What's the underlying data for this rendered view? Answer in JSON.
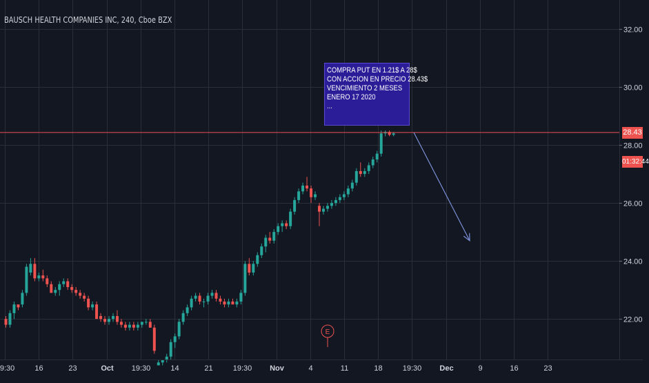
{
  "header": {
    "title": "BAUSCH HEALTH COMPANIES INC, 240, Cboe BZX"
  },
  "annotation": {
    "lines": [
      "COMPRA PUT EN 1.21$  A  28$",
      "CON ACCION EN PRECIO 28.43$",
      "VENCIMIENTO 2 MESES",
      "ENERO 17  2020",
      "..."
    ]
  },
  "price_scale": {
    "last_price": "28.43",
    "countdown": "01:32:44"
  },
  "colors": {
    "background": "#131722",
    "up": "#26a69a",
    "down": "#ef5350",
    "grid": "#2a2e39",
    "price_line": "#ef5350",
    "arrow": "#7b8fd6",
    "earnings_marker": "#ef5350",
    "axis_text": "#d1d4dc"
  },
  "chart_data": {
    "type": "candlestick",
    "title": "BAUSCH HEALTH COMPANIES INC, 240, Cboe BZX",
    "ylim": [
      20.6,
      33.0
    ],
    "y_ticks": [
      "32.00",
      "30.00",
      "28.00",
      "26.00",
      "24.00",
      "22.00"
    ],
    "y_tick_values": [
      32,
      30,
      28,
      26,
      24,
      22
    ],
    "x_ticks": [
      "19:30",
      "16",
      "23",
      "Oct",
      "19:30",
      "14",
      "21",
      "19:30",
      "Nov",
      "4",
      "11",
      "18",
      "19:30",
      "Dec",
      "9",
      "16",
      "23"
    ],
    "x_bold_ticks": [
      "Oct",
      "Nov",
      "Dec"
    ],
    "grid": true,
    "last_price": 28.43,
    "earnings_marker": "E",
    "annotation_arrow": {
      "from": [
        28.43
      ],
      "to": [
        24.7
      ]
    },
    "candles": [
      [
        22.0,
        22.1,
        21.7,
        21.8
      ],
      [
        21.8,
        22.3,
        21.7,
        22.2
      ],
      [
        22.2,
        22.6,
        22.0,
        22.5
      ],
      [
        22.5,
        22.5,
        22.3,
        22.4
      ],
      [
        22.5,
        23.0,
        22.4,
        22.9
      ],
      [
        22.9,
        23.9,
        22.8,
        23.8
      ],
      [
        23.6,
        24.1,
        23.5,
        23.9
      ],
      [
        23.9,
        24.1,
        23.3,
        23.4
      ],
      [
        23.4,
        23.6,
        23.3,
        23.5
      ],
      [
        23.5,
        23.7,
        23.3,
        23.4
      ],
      [
        23.4,
        23.5,
        23.1,
        23.2
      ],
      [
        23.2,
        23.3,
        22.9,
        22.9
      ],
      [
        22.9,
        23.1,
        22.8,
        23.0
      ],
      [
        23.0,
        23.3,
        22.8,
        23.2
      ],
      [
        23.2,
        23.4,
        23.1,
        23.3
      ],
      [
        23.3,
        23.4,
        23.0,
        23.1
      ],
      [
        23.1,
        23.2,
        22.9,
        23.0
      ],
      [
        23.0,
        23.1,
        22.8,
        22.9
      ],
      [
        22.9,
        23.0,
        22.7,
        22.8
      ],
      [
        22.8,
        22.9,
        22.6,
        22.7
      ],
      [
        22.7,
        22.8,
        22.3,
        22.4
      ],
      [
        22.4,
        22.6,
        22.3,
        22.5
      ],
      [
        22.5,
        22.6,
        22.0,
        22.0
      ],
      [
        22.1,
        22.2,
        21.9,
        22.0
      ],
      [
        22.0,
        22.1,
        21.8,
        21.9
      ],
      [
        21.9,
        22.1,
        21.8,
        22.0
      ],
      [
        22.0,
        22.2,
        21.9,
        22.1
      ],
      [
        22.1,
        22.3,
        21.8,
        21.9
      ],
      [
        21.9,
        22.0,
        21.7,
        21.8
      ],
      [
        21.8,
        21.9,
        21.6,
        21.7
      ],
      [
        21.7,
        21.9,
        21.6,
        21.8
      ],
      [
        21.8,
        21.9,
        21.6,
        21.7
      ],
      [
        21.7,
        21.9,
        21.6,
        21.8
      ],
      [
        21.8,
        21.9,
        21.7,
        21.9
      ],
      [
        21.9,
        22.0,
        21.8,
        21.9
      ],
      [
        21.9,
        22.0,
        21.7,
        21.7
      ],
      [
        21.7,
        21.8,
        20.8,
        20.9
      ],
      [
        20.4,
        20.6,
        20.4,
        20.5
      ],
      [
        20.5,
        20.6,
        20.4,
        20.6
      ],
      [
        20.6,
        20.8,
        20.5,
        20.7
      ],
      [
        20.7,
        21.3,
        20.6,
        21.2
      ],
      [
        21.2,
        21.5,
        21.0,
        21.4
      ],
      [
        21.4,
        22.0,
        21.3,
        21.9
      ],
      [
        21.9,
        22.3,
        21.8,
        22.2
      ],
      [
        22.2,
        22.5,
        22.1,
        22.4
      ],
      [
        22.4,
        22.8,
        22.3,
        22.7
      ],
      [
        22.7,
        22.9,
        22.6,
        22.8
      ],
      [
        22.8,
        22.9,
        22.5,
        22.6
      ],
      [
        22.6,
        22.7,
        22.4,
        22.6
      ],
      [
        22.6,
        22.9,
        22.5,
        22.8
      ],
      [
        22.8,
        23.0,
        22.7,
        22.9
      ],
      [
        22.9,
        23.0,
        22.6,
        22.7
      ],
      [
        22.7,
        22.8,
        22.5,
        22.6
      ],
      [
        22.6,
        22.7,
        22.4,
        22.5
      ],
      [
        22.5,
        22.7,
        22.4,
        22.6
      ],
      [
        22.6,
        22.7,
        22.5,
        22.5
      ],
      [
        22.5,
        22.7,
        22.4,
        22.6
      ],
      [
        22.6,
        23.0,
        22.5,
        22.9
      ],
      [
        22.9,
        24.0,
        22.8,
        23.9
      ],
      [
        23.9,
        24.1,
        23.5,
        23.6
      ],
      [
        23.6,
        24.0,
        23.5,
        23.9
      ],
      [
        23.9,
        24.3,
        23.8,
        24.2
      ],
      [
        24.2,
        24.6,
        24.1,
        24.5
      ],
      [
        24.5,
        24.9,
        24.3,
        24.8
      ],
      [
        24.8,
        25.0,
        24.6,
        24.7
      ],
      [
        24.7,
        25.1,
        24.6,
        25.0
      ],
      [
        25.0,
        25.3,
        24.9,
        25.2
      ],
      [
        25.2,
        25.4,
        25.0,
        25.3
      ],
      [
        25.3,
        25.4,
        25.1,
        25.2
      ],
      [
        25.2,
        25.8,
        25.1,
        25.7
      ],
      [
        25.7,
        26.2,
        25.6,
        26.1
      ],
      [
        26.1,
        26.5,
        26.0,
        26.4
      ],
      [
        26.4,
        26.7,
        26.3,
        26.6
      ],
      [
        26.6,
        26.9,
        26.4,
        26.5
      ],
      [
        26.5,
        26.6,
        26.0,
        26.2
      ],
      [
        26.2,
        26.4,
        26.1,
        26.3
      ],
      [
        25.9,
        26.0,
        25.2,
        25.7
      ],
      [
        25.7,
        25.9,
        25.6,
        25.8
      ],
      [
        25.8,
        26.0,
        25.7,
        25.9
      ],
      [
        25.9,
        26.1,
        25.8,
        26.0
      ],
      [
        26.0,
        26.2,
        25.9,
        26.1
      ],
      [
        26.1,
        26.3,
        26.0,
        26.2
      ],
      [
        26.2,
        26.4,
        26.1,
        26.3
      ],
      [
        26.3,
        26.6,
        26.2,
        26.5
      ],
      [
        26.5,
        26.8,
        26.4,
        26.7
      ],
      [
        26.7,
        27.2,
        26.6,
        27.1
      ],
      [
        27.1,
        27.4,
        26.9,
        27.0
      ],
      [
        27.0,
        27.2,
        26.9,
        27.1
      ],
      [
        27.1,
        27.4,
        27.0,
        27.3
      ],
      [
        27.3,
        27.6,
        27.2,
        27.5
      ],
      [
        27.5,
        27.8,
        27.4,
        27.7
      ],
      [
        27.7,
        28.5,
        27.6,
        28.4
      ],
      [
        28.4,
        28.5,
        28.3,
        28.45
      ],
      [
        28.45,
        28.5,
        28.3,
        28.35
      ],
      [
        28.35,
        28.45,
        28.3,
        28.4
      ]
    ]
  }
}
